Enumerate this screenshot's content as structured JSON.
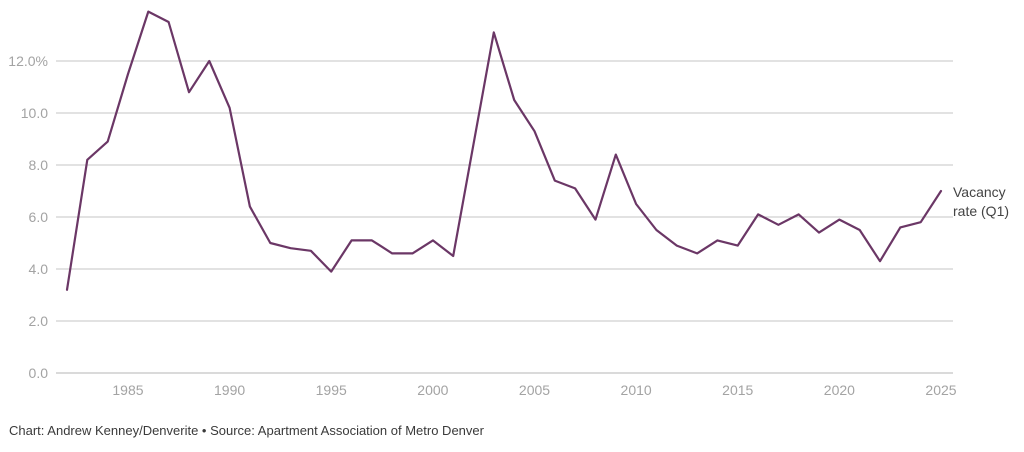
{
  "chart_data": {
    "type": "line",
    "x_ticks": [
      1985,
      1990,
      1995,
      2000,
      2005,
      2010,
      2015,
      2020,
      2025
    ],
    "y_ticks": [
      "0.0",
      "2.0",
      "4.0",
      "6.0",
      "8.0",
      "10.0",
      "12.0%"
    ],
    "ylim": [
      0,
      14
    ],
    "xlim": [
      1982,
      2025
    ],
    "grid": true,
    "series": [
      {
        "name": "Vacancy rate (Q1)",
        "color": "#6b3766",
        "x": [
          1982,
          1983,
          1984,
          1985,
          1986,
          1987,
          1988,
          1989,
          1990,
          1991,
          1992,
          1993,
          1994,
          1995,
          1996,
          1997,
          1998,
          1999,
          2000,
          2001,
          2002,
          2003,
          2004,
          2005,
          2006,
          2007,
          2008,
          2009,
          2010,
          2011,
          2012,
          2013,
          2014,
          2015,
          2016,
          2017,
          2018,
          2019,
          2020,
          2021,
          2022,
          2023,
          2024,
          2025
        ],
        "values": [
          3.2,
          8.2,
          8.9,
          11.5,
          13.9,
          13.5,
          10.8,
          12.0,
          10.2,
          6.4,
          5.0,
          4.8,
          4.7,
          3.9,
          5.1,
          5.1,
          4.6,
          4.6,
          5.1,
          4.5,
          8.8,
          13.1,
          10.5,
          9.3,
          7.4,
          7.1,
          5.9,
          8.4,
          6.5,
          5.5,
          4.9,
          4.6,
          5.1,
          4.9,
          6.1,
          5.7,
          6.1,
          5.4,
          5.9,
          5.5,
          4.3,
          5.6,
          5.8,
          7.0
        ]
      }
    ],
    "series_label_lines": [
      "Vacancy",
      "rate (Q1)"
    ]
  },
  "credit": "Chart: Andrew Kenney/Denverite • Source: Apartment Association of Metro Denver"
}
